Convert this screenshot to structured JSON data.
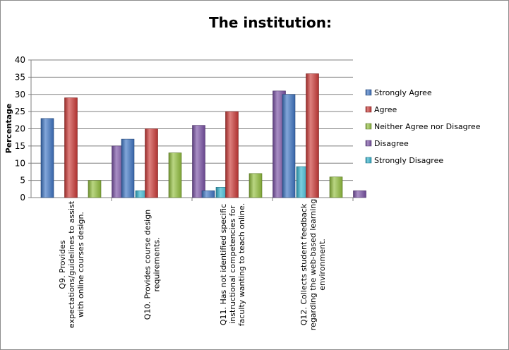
{
  "chart_data": {
    "type": "bar",
    "title": "The institution:",
    "xlabel": "",
    "ylabel": "Percentage",
    "ylim": [
      0,
      40
    ],
    "yticks": [
      0,
      5,
      10,
      15,
      20,
      25,
      30,
      35,
      40
    ],
    "grid": true,
    "legend_position": "right",
    "categories": [
      [
        "Q9. Provides",
        "expectations/guidelines to assist",
        "with online courses design."
      ],
      [
        "Q10. Provides course design",
        "requirements."
      ],
      [
        "Q11. Has not identified specific",
        "instructional competencies for",
        "faculty wanting to teach online."
      ],
      [
        "Q12. Collects student feedback",
        "regarding the web-based learning",
        "environment."
      ]
    ],
    "series": [
      {
        "name": "Strongly Agree",
        "color": "#3f76c5",
        "values": [
          23,
          17,
          2,
          30
        ]
      },
      {
        "name": "Agree",
        "color": "#cc3b38",
        "values": [
          29,
          20,
          25,
          36
        ]
      },
      {
        "name": "Neither Agree nor Disagree",
        "color": "#93c03e",
        "values": [
          5,
          13,
          7,
          6
        ]
      },
      {
        "name": "Disagree",
        "color": "#7a52a6",
        "values": [
          15,
          21,
          31,
          2
        ]
      },
      {
        "name": "Strongly Disagree",
        "color": "#33b3ce",
        "values": [
          2,
          3,
          9,
          0
        ]
      }
    ]
  }
}
